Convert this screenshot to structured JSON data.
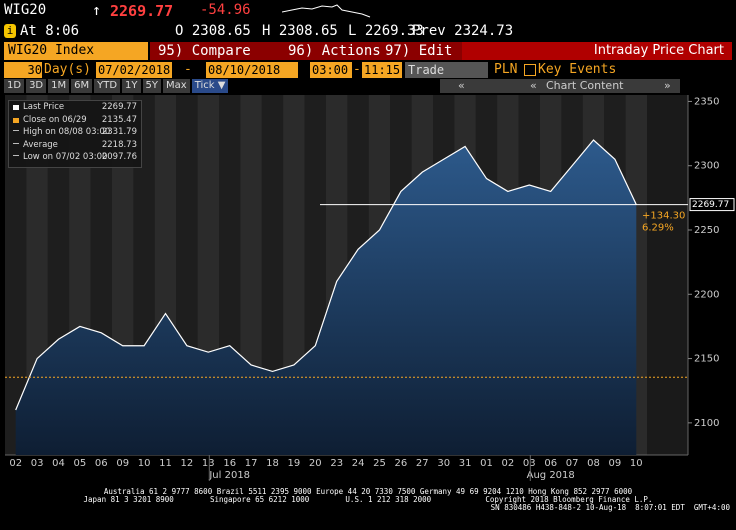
{
  "header": {
    "ticker": "WIG20",
    "arrow": "↑",
    "last": "2269.77",
    "change": "-54.96",
    "time_badge": "i",
    "time": "At 8:06",
    "open": "O 2308.65",
    "high": "H 2308.65",
    "low": "L 2269.33",
    "prev": "Prev 2324.73"
  },
  "menu": {
    "security": "WIG20 Index",
    "compare": "95) Compare",
    "actions": "96) Actions",
    "edit": "97) Edit",
    "title": "Intraday Price Chart"
  },
  "range_bar": {
    "count": "30",
    "unit": "Day(s)",
    "start": "07/02/2018",
    "dash1": "-",
    "end": "08/10/2018",
    "from": "03:00",
    "dash2": "-",
    "to": "11:15",
    "mode": "Trade",
    "currency": "PLN",
    "events": "Key Events"
  },
  "periods": [
    "1D",
    "3D",
    "1M",
    "6M",
    "YTD",
    "1Y",
    "5Y",
    "Max",
    "Tick ▼"
  ],
  "chart_content": "Chart Content",
  "chart_data": {
    "type": "line",
    "categories": [
      "02",
      "03",
      "04",
      "05",
      "06",
      "09",
      "10",
      "11",
      "12",
      "13",
      "16",
      "17",
      "18",
      "19",
      "20",
      "23",
      "24",
      "25",
      "26",
      "27",
      "30",
      "31",
      "01",
      "02",
      "03",
      "06",
      "07",
      "08",
      "09",
      "10"
    ],
    "months": [
      {
        "label": "Jul 2018",
        "at": 10
      },
      {
        "label": "Aug 2018",
        "at": 25
      }
    ],
    "series": [
      {
        "name": "Last Price",
        "color": "#ffffff",
        "values": [
          2110,
          2150,
          2165,
          2175,
          2170,
          2160,
          2160,
          2185,
          2160,
          2155,
          2160,
          2145,
          2140,
          2145,
          2160,
          2210,
          2235,
          2250,
          2280,
          2295,
          2305,
          2315,
          2290,
          2280,
          2285,
          2280,
          2300,
          2320,
          2305,
          2269.77
        ]
      }
    ],
    "legend": [
      {
        "label": "Last Price",
        "value": 2269.77
      },
      {
        "label": "Close on 06/29",
        "value": 2135.47
      },
      {
        "label": "High on 08/08 03:00",
        "value": 2331.79
      },
      {
        "label": "Average",
        "value": 2218.73
      },
      {
        "label": "Low on 07/02 03:00",
        "value": 2097.76
      }
    ],
    "change_label": "+134.30",
    "change_pct": "6.29%",
    "ylim": [
      2075,
      2355
    ],
    "yticks": [
      2100,
      2150,
      2200,
      2250,
      2300,
      2350
    ]
  },
  "footer": [
    "Australia 61 2 9777 8600 Brazil 5511 2395 9000 Europe 44 20 7330 7500 Germany 49 69 9204 1210 Hong Kong 852 2977 6000",
    "Japan 81 3 3201 8900        Singapore 65 6212 1000        U.S. 1 212 318 2000            Copyright 2018 Bloomberg Finance L.P.",
    "SN 830486 H438-848-2 10-Aug-18  8:07:01 EDT  GMT+4:00"
  ]
}
